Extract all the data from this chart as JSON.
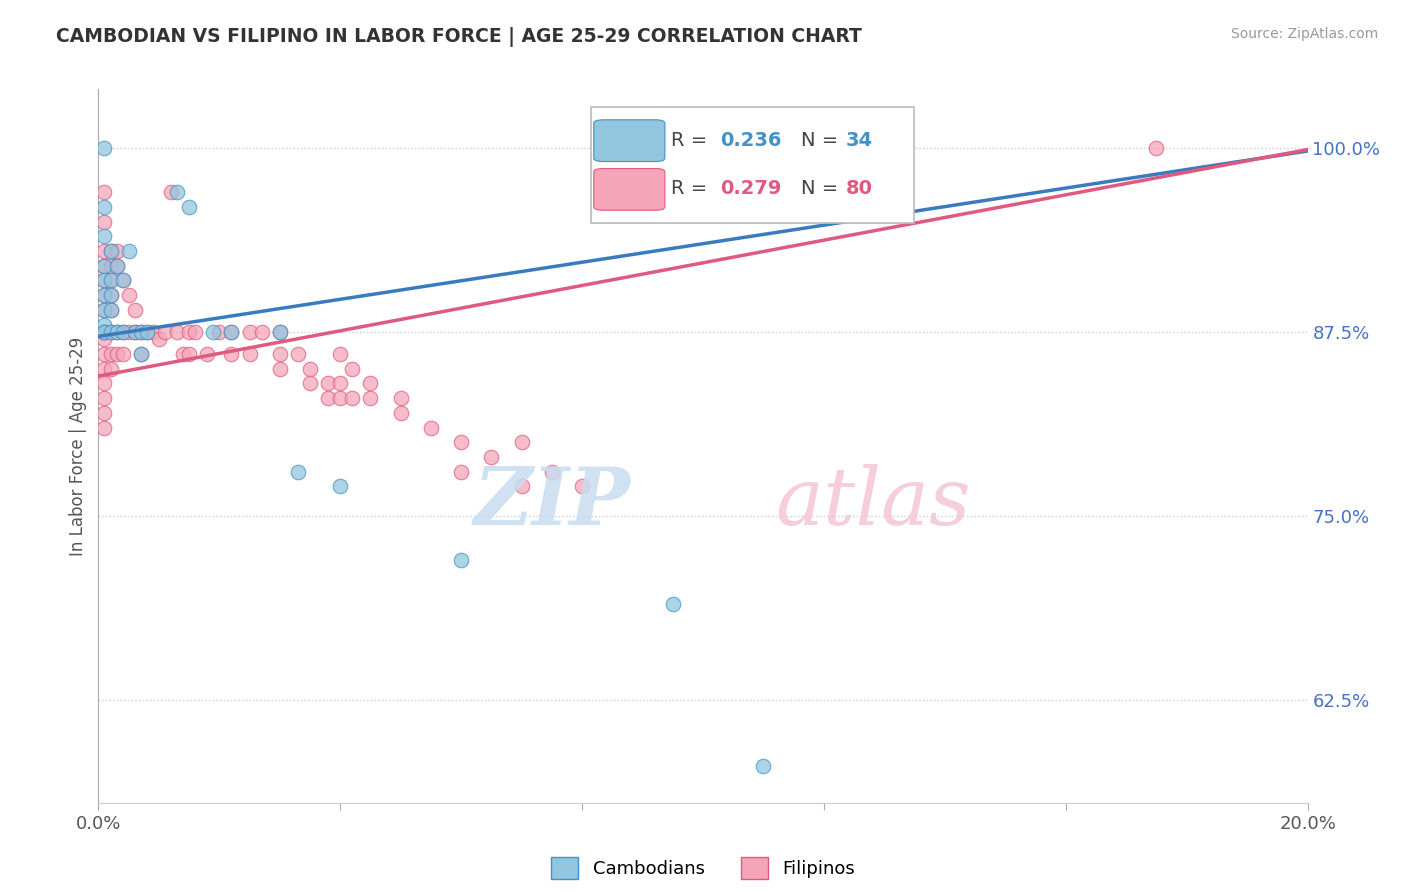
{
  "title": "CAMBODIAN VS FILIPINO IN LABOR FORCE | AGE 25-29 CORRELATION CHART",
  "source": "Source: ZipAtlas.com",
  "ylabel": "In Labor Force | Age 25-29",
  "ytick_labels": [
    "62.5%",
    "75.0%",
    "87.5%",
    "100.0%"
  ],
  "ytick_values": [
    0.625,
    0.75,
    0.875,
    1.0
  ],
  "xlim": [
    0.0,
    0.2
  ],
  "ylim": [
    0.555,
    1.04
  ],
  "blue_color": "#92c5de",
  "pink_color": "#f4a6b8",
  "blue_edge": "#4292c6",
  "pink_edge": "#e05a80",
  "trend_blue": "#3a7bbf",
  "trend_pink": "#e05a80",
  "blue_r": 0.236,
  "blue_n": 34,
  "pink_r": 0.279,
  "pink_n": 80,
  "blue_intercept": 0.872,
  "blue_slope": 0.63,
  "pink_intercept": 0.845,
  "pink_slope": 0.77,
  "cambodian_points": [
    [
      0.001,
      1.0
    ],
    [
      0.001,
      0.96
    ],
    [
      0.001,
      0.94
    ],
    [
      0.001,
      0.92
    ],
    [
      0.001,
      0.91
    ],
    [
      0.001,
      0.9
    ],
    [
      0.001,
      0.89
    ],
    [
      0.001,
      0.88
    ],
    [
      0.001,
      0.875
    ],
    [
      0.001,
      0.875
    ],
    [
      0.002,
      0.93
    ],
    [
      0.002,
      0.91
    ],
    [
      0.002,
      0.9
    ],
    [
      0.002,
      0.89
    ],
    [
      0.002,
      0.875
    ],
    [
      0.003,
      0.92
    ],
    [
      0.003,
      0.875
    ],
    [
      0.004,
      0.91
    ],
    [
      0.004,
      0.875
    ],
    [
      0.005,
      0.93
    ],
    [
      0.006,
      0.875
    ],
    [
      0.007,
      0.875
    ],
    [
      0.007,
      0.86
    ],
    [
      0.008,
      0.875
    ],
    [
      0.013,
      0.97
    ],
    [
      0.015,
      0.96
    ],
    [
      0.019,
      0.875
    ],
    [
      0.022,
      0.875
    ],
    [
      0.03,
      0.875
    ],
    [
      0.033,
      0.78
    ],
    [
      0.04,
      0.77
    ],
    [
      0.06,
      0.72
    ],
    [
      0.095,
      0.69
    ],
    [
      0.11,
      0.58
    ]
  ],
  "filipino_points": [
    [
      0.001,
      0.97
    ],
    [
      0.001,
      0.95
    ],
    [
      0.001,
      0.93
    ],
    [
      0.001,
      0.92
    ],
    [
      0.001,
      0.91
    ],
    [
      0.001,
      0.9
    ],
    [
      0.001,
      0.89
    ],
    [
      0.001,
      0.875
    ],
    [
      0.001,
      0.875
    ],
    [
      0.001,
      0.87
    ],
    [
      0.001,
      0.86
    ],
    [
      0.001,
      0.85
    ],
    [
      0.001,
      0.84
    ],
    [
      0.001,
      0.83
    ],
    [
      0.001,
      0.82
    ],
    [
      0.001,
      0.81
    ],
    [
      0.002,
      0.93
    ],
    [
      0.002,
      0.92
    ],
    [
      0.002,
      0.91
    ],
    [
      0.002,
      0.9
    ],
    [
      0.002,
      0.89
    ],
    [
      0.002,
      0.875
    ],
    [
      0.002,
      0.86
    ],
    [
      0.002,
      0.85
    ],
    [
      0.003,
      0.93
    ],
    [
      0.003,
      0.92
    ],
    [
      0.003,
      0.875
    ],
    [
      0.003,
      0.86
    ],
    [
      0.004,
      0.91
    ],
    [
      0.004,
      0.875
    ],
    [
      0.004,
      0.86
    ],
    [
      0.005,
      0.9
    ],
    [
      0.005,
      0.875
    ],
    [
      0.006,
      0.89
    ],
    [
      0.006,
      0.875
    ],
    [
      0.007,
      0.875
    ],
    [
      0.007,
      0.86
    ],
    [
      0.008,
      0.875
    ],
    [
      0.009,
      0.875
    ],
    [
      0.01,
      0.87
    ],
    [
      0.011,
      0.875
    ],
    [
      0.012,
      0.97
    ],
    [
      0.013,
      0.875
    ],
    [
      0.014,
      0.86
    ],
    [
      0.015,
      0.875
    ],
    [
      0.015,
      0.86
    ],
    [
      0.016,
      0.875
    ],
    [
      0.018,
      0.86
    ],
    [
      0.02,
      0.875
    ],
    [
      0.022,
      0.875
    ],
    [
      0.022,
      0.86
    ],
    [
      0.025,
      0.875
    ],
    [
      0.025,
      0.86
    ],
    [
      0.027,
      0.875
    ],
    [
      0.03,
      0.875
    ],
    [
      0.03,
      0.86
    ],
    [
      0.03,
      0.85
    ],
    [
      0.033,
      0.86
    ],
    [
      0.035,
      0.85
    ],
    [
      0.035,
      0.84
    ],
    [
      0.038,
      0.84
    ],
    [
      0.038,
      0.83
    ],
    [
      0.04,
      0.86
    ],
    [
      0.04,
      0.84
    ],
    [
      0.04,
      0.83
    ],
    [
      0.042,
      0.85
    ],
    [
      0.042,
      0.83
    ],
    [
      0.045,
      0.84
    ],
    [
      0.045,
      0.83
    ],
    [
      0.05,
      0.83
    ],
    [
      0.05,
      0.82
    ],
    [
      0.055,
      0.81
    ],
    [
      0.06,
      0.8
    ],
    [
      0.06,
      0.78
    ],
    [
      0.065,
      0.79
    ],
    [
      0.07,
      0.8
    ],
    [
      0.07,
      0.77
    ],
    [
      0.075,
      0.78
    ],
    [
      0.08,
      0.77
    ],
    [
      0.175,
      1.0
    ]
  ]
}
